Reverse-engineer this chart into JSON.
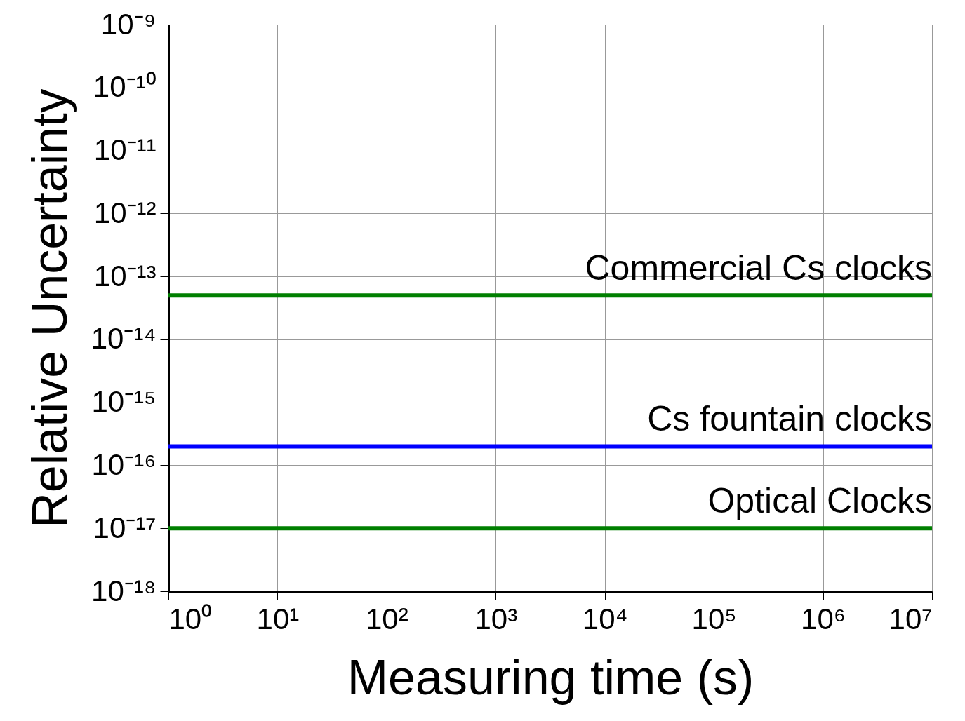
{
  "chart_data": {
    "type": "line",
    "xlabel": "Measuring time (s)",
    "ylabel": "Relative Uncertainty",
    "log": "xy",
    "grid": true,
    "marker": "none",
    "line_style": "solid",
    "x": [
      1,
      10000000
    ],
    "series": [
      {
        "name": "Commercial Cs clocks",
        "color": "#007f00",
        "values": [
          5e-14,
          5e-14
        ]
      },
      {
        "name": "Cs fountain clocks",
        "color": "#0000ff",
        "values": [
          2e-16,
          2e-16
        ]
      },
      {
        "name": "Optical Clocks",
        "color": "#007f00",
        "values": [
          1e-17,
          1e-17
        ]
      }
    ],
    "xlim": [
      1,
      10000000
    ],
    "ylim": [
      1e-18,
      1e-09
    ],
    "xticks": [
      {
        "value": 1,
        "label": "10⁰"
      },
      {
        "value": 10,
        "label": "10¹"
      },
      {
        "value": 100,
        "label": "10²"
      },
      {
        "value": 1000,
        "label": "10³"
      },
      {
        "value": 10000,
        "label": "10⁴"
      },
      {
        "value": 100000,
        "label": "10⁵"
      },
      {
        "value": 1000000,
        "label": "10⁶"
      },
      {
        "value": 10000000,
        "label": "10⁷"
      }
    ],
    "yticks": [
      {
        "value": 1e-18,
        "label": "10⁻¹⁸"
      },
      {
        "value": 1e-17,
        "label": "10⁻¹⁷"
      },
      {
        "value": 1e-16,
        "label": "10⁻¹⁶"
      },
      {
        "value": 1e-15,
        "label": "10⁻¹⁵"
      },
      {
        "value": 1e-14,
        "label": "10⁻¹⁴"
      },
      {
        "value": 1e-13,
        "label": "10⁻¹³"
      },
      {
        "value": 1e-12,
        "label": "10⁻¹²"
      },
      {
        "value": 1e-11,
        "label": "10⁻¹¹"
      },
      {
        "value": 1e-10,
        "label": "10⁻¹⁰"
      },
      {
        "value": 1e-09,
        "label": "10⁻⁹"
      }
    ]
  }
}
